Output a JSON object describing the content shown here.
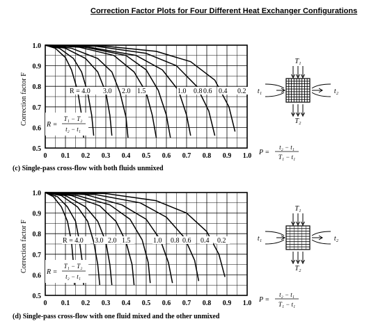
{
  "page_title": "Correction Factor Plots for Four Different Heat Exchanger Configurations",
  "chart_data": [
    {
      "type": "line",
      "caption": "(c) Single-pass cross-flow with both fluids unmixed",
      "ylabel": "Correction factor F",
      "xlabel_symbol": "P =",
      "xlabel_num": "t₂ − t₁",
      "xlabel_den": "T₁ − t₁",
      "r_def_prefix": "R =",
      "r_def_num": "T₁ − T₂",
      "r_def_den": "t₂ − t₁",
      "xlim": [
        0,
        1.0
      ],
      "ylim": [
        0.5,
        1.0
      ],
      "x_ticks": [
        "0",
        "0.1",
        "0.2",
        "0.3",
        "0.4",
        "0.5",
        "0.6",
        "0.7",
        "0.8",
        "0.9",
        "1.0"
      ],
      "y_ticks": [
        "0.5",
        "0.6",
        "0.7",
        "0.8",
        "0.9",
        "1.0"
      ],
      "r_labels": [
        "R = 4.0",
        "3.0",
        "2.0",
        "1.5",
        "1.0",
        "0.8",
        "0.6",
        "0.4",
        "0.2"
      ],
      "series": [
        {
          "name": "4.0",
          "x": [
            0,
            0.05,
            0.1,
            0.13,
            0.16,
            0.18,
            0.19
          ],
          "y": [
            1.0,
            0.985,
            0.94,
            0.88,
            0.78,
            0.66,
            0.55
          ]
        },
        {
          "name": "3.0",
          "x": [
            0,
            0.07,
            0.14,
            0.18,
            0.21,
            0.23,
            0.24
          ],
          "y": [
            1.0,
            0.985,
            0.935,
            0.87,
            0.77,
            0.66,
            0.56
          ]
        },
        {
          "name": "2.0",
          "x": [
            0,
            0.1,
            0.2,
            0.26,
            0.3,
            0.32,
            0.33
          ],
          "y": [
            1.0,
            0.985,
            0.935,
            0.87,
            0.77,
            0.66,
            0.56
          ]
        },
        {
          "name": "1.5",
          "x": [
            0,
            0.13,
            0.26,
            0.33,
            0.37,
            0.4,
            0.41
          ],
          "y": [
            1.0,
            0.985,
            0.935,
            0.87,
            0.77,
            0.65,
            0.55
          ]
        },
        {
          "name": "1.0",
          "x": [
            0,
            0.17,
            0.34,
            0.44,
            0.5,
            0.53,
            0.55
          ],
          "y": [
            1.0,
            0.99,
            0.95,
            0.87,
            0.77,
            0.66,
            0.55
          ]
        },
        {
          "name": "0.8",
          "x": [
            0,
            0.2,
            0.4,
            0.5,
            0.56,
            0.6,
            0.62
          ],
          "y": [
            1.0,
            0.99,
            0.95,
            0.88,
            0.78,
            0.66,
            0.55
          ]
        },
        {
          "name": "0.6",
          "x": [
            0,
            0.22,
            0.45,
            0.58,
            0.66,
            0.7,
            0.72
          ],
          "y": [
            1.0,
            0.99,
            0.95,
            0.88,
            0.78,
            0.66,
            0.56
          ]
        },
        {
          "name": "0.4",
          "x": [
            0,
            0.25,
            0.5,
            0.65,
            0.75,
            0.81,
            0.84
          ],
          "y": [
            1.0,
            0.995,
            0.96,
            0.9,
            0.8,
            0.68,
            0.56
          ]
        },
        {
          "name": "0.2",
          "x": [
            0,
            0.3,
            0.55,
            0.72,
            0.84,
            0.91,
            0.94
          ],
          "y": [
            1.0,
            0.995,
            0.97,
            0.92,
            0.83,
            0.7,
            0.58
          ]
        }
      ]
    },
    {
      "type": "line",
      "caption": "(d) Single-pass cross-flow with one fluid mixed and the other unmixed",
      "ylabel": "Correction factor F",
      "xlabel_symbol": "P =",
      "xlabel_num": "t₂ − t₁",
      "xlabel_den": "T₁ − t₁",
      "r_def_prefix": "R =",
      "r_def_num": "T₁ − T₂",
      "r_def_den": "t₂ − t₁",
      "xlim": [
        0,
        1.0
      ],
      "ylim": [
        0.5,
        1.0
      ],
      "x_ticks": [
        "0",
        "0.1",
        "0.2",
        "0.3",
        "0.4",
        "0.5",
        "0.6",
        "0.7",
        "0.8",
        "0.9",
        "1.0"
      ],
      "y_ticks": [
        "0.5",
        "0.6",
        "0.7",
        "0.8",
        "0.9",
        "1.0"
      ],
      "r_labels": [
        "R = 4.0",
        "3.0",
        "2.0",
        "1.5",
        "1.0",
        "0.8",
        "0.6",
        "0.4",
        "0.2"
      ],
      "series": [
        {
          "name": "4.0",
          "x": [
            0,
            0.04,
            0.08,
            0.11,
            0.13,
            0.14,
            0.145
          ],
          "y": [
            1.0,
            0.98,
            0.93,
            0.86,
            0.76,
            0.65,
            0.55
          ]
        },
        {
          "name": "3.0",
          "x": [
            0,
            0.06,
            0.11,
            0.15,
            0.17,
            0.185,
            0.19
          ],
          "y": [
            1.0,
            0.98,
            0.93,
            0.86,
            0.76,
            0.65,
            0.55
          ]
        },
        {
          "name": "2.0",
          "x": [
            0,
            0.08,
            0.16,
            0.21,
            0.24,
            0.26,
            0.27
          ],
          "y": [
            1.0,
            0.985,
            0.93,
            0.86,
            0.76,
            0.65,
            0.55
          ]
        },
        {
          "name": "1.5",
          "x": [
            0,
            0.1,
            0.2,
            0.26,
            0.3,
            0.32,
            0.33
          ],
          "y": [
            1.0,
            0.985,
            0.93,
            0.86,
            0.76,
            0.65,
            0.55
          ]
        },
        {
          "name": "1.0",
          "x": [
            0,
            0.13,
            0.27,
            0.35,
            0.4,
            0.43,
            0.44
          ],
          "y": [
            1.0,
            0.985,
            0.935,
            0.86,
            0.76,
            0.65,
            0.55
          ]
        },
        {
          "name": "0.8",
          "x": [
            0,
            0.16,
            0.32,
            0.42,
            0.48,
            0.51,
            0.52
          ],
          "y": [
            1.0,
            0.985,
            0.94,
            0.87,
            0.77,
            0.66,
            0.56
          ]
        },
        {
          "name": "0.6",
          "x": [
            0,
            0.2,
            0.38,
            0.5,
            0.57,
            0.61,
            0.63
          ],
          "y": [
            1.0,
            0.99,
            0.94,
            0.87,
            0.77,
            0.66,
            0.56
          ]
        },
        {
          "name": "0.4",
          "x": [
            0,
            0.25,
            0.47,
            0.6,
            0.69,
            0.74,
            0.76
          ],
          "y": [
            1.0,
            0.99,
            0.95,
            0.88,
            0.78,
            0.67,
            0.57
          ]
        },
        {
          "name": "0.2",
          "x": [
            0,
            0.3,
            0.55,
            0.7,
            0.8,
            0.86,
            0.89
          ],
          "y": [
            1.0,
            0.995,
            0.96,
            0.9,
            0.81,
            0.7,
            0.59
          ]
        }
      ]
    }
  ],
  "diagram": {
    "hot_in": "T₁",
    "hot_out": "T₂",
    "cold_in": "t₁",
    "cold_out": "t₂"
  }
}
